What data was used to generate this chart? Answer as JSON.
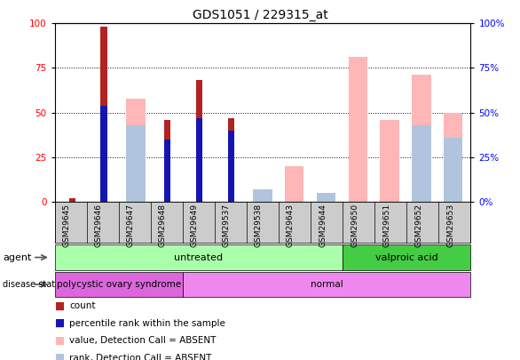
{
  "title": "GDS1051 / 229315_at",
  "samples": [
    "GSM29645",
    "GSM29646",
    "GSM29647",
    "GSM29648",
    "GSM29649",
    "GSM29537",
    "GSM29538",
    "GSM29643",
    "GSM29644",
    "GSM29650",
    "GSM29651",
    "GSM29652",
    "GSM29653"
  ],
  "count": [
    2,
    98,
    0,
    46,
    68,
    47,
    0,
    0,
    0,
    0,
    0,
    0,
    0
  ],
  "percentile_rank": [
    0,
    54,
    0,
    35,
    47,
    40,
    0,
    0,
    0,
    0,
    0,
    0,
    0
  ],
  "value_absent": [
    0,
    0,
    58,
    0,
    0,
    0,
    0,
    20,
    0,
    81,
    46,
    71,
    50
  ],
  "rank_absent": [
    0,
    0,
    43,
    0,
    0,
    0,
    7,
    0,
    5,
    0,
    0,
    43,
    36
  ],
  "count_color": "#b22222",
  "percentile_color": "#1515b0",
  "value_absent_color": "#ffb6b6",
  "rank_absent_color": "#b0c4de",
  "agent_groups": [
    {
      "label": "untreated",
      "start": 0,
      "end": 9,
      "color": "#aaffaa"
    },
    {
      "label": "valproic acid",
      "start": 9,
      "end": 13,
      "color": "#44cc44"
    }
  ],
  "disease_groups": [
    {
      "label": "polycystic ovary syndrome",
      "start": 0,
      "end": 4,
      "color": "#dd66dd"
    },
    {
      "label": "normal",
      "start": 4,
      "end": 13,
      "color": "#ee88ee"
    }
  ],
  "ylim": [
    0,
    100
  ],
  "yticks": [
    0,
    25,
    50,
    75,
    100
  ]
}
